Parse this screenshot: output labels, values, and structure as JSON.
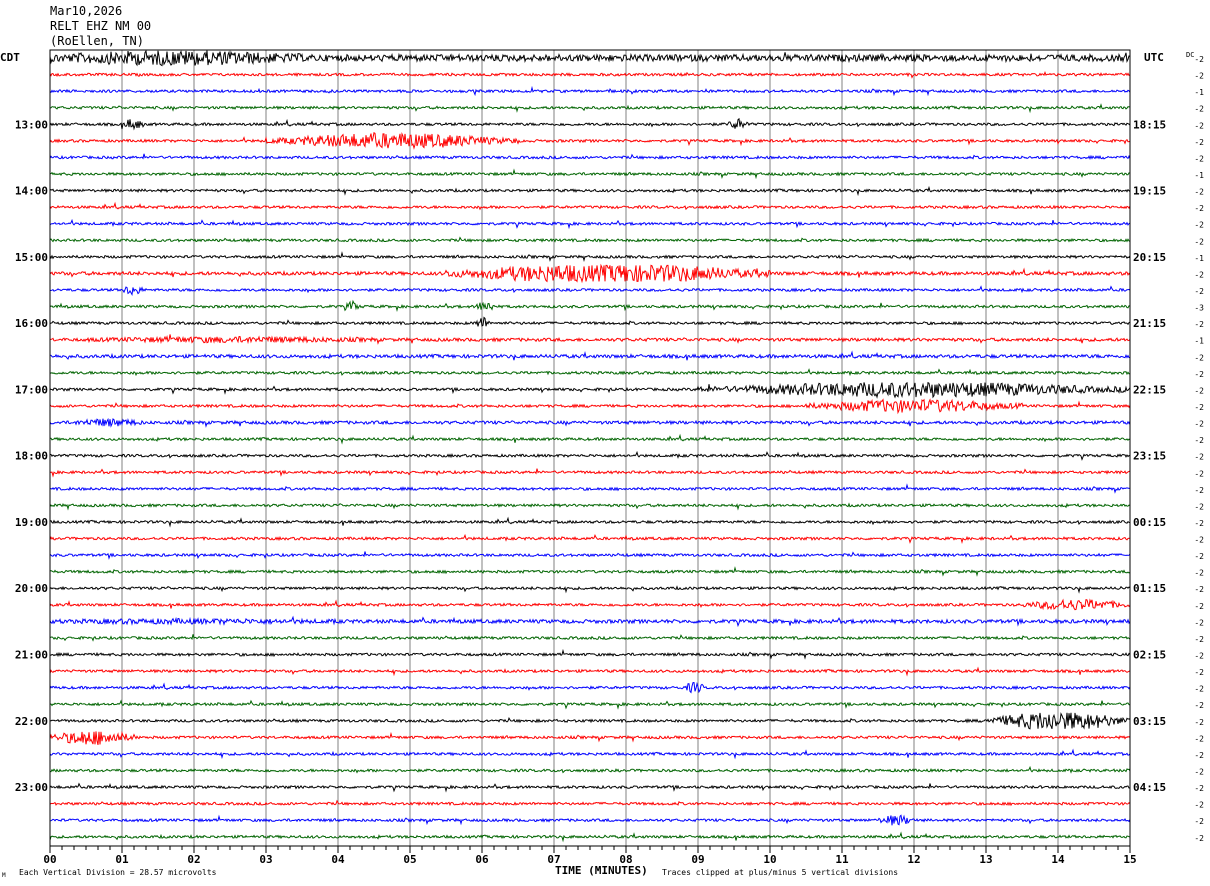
{
  "header": {
    "date": "Mar10,2026",
    "station": "RELT EHZ NM 00",
    "location": "(RoEllen, TN)"
  },
  "labels": {
    "left_tz": "CDT",
    "right_tz": "UTC",
    "dc_label": "DC",
    "xlabel": "TIME (MINUTES)",
    "scale_note": "Each Vertical Division =   28.57 microvolts",
    "clip_note": "Traces clipped at plus/minus 5 vertical divisions",
    "corner_mark": "M"
  },
  "colors": {
    "trace_cycle": [
      "#000000",
      "#ff0000",
      "#0000ff",
      "#006400"
    ],
    "grid": "#808080",
    "frame": "#000000"
  },
  "chart_data": {
    "type": "line",
    "chart_kind": "helicorder",
    "xlim": [
      0,
      15
    ],
    "x_ticks": [
      "00",
      "01",
      "02",
      "03",
      "04",
      "05",
      "06",
      "07",
      "08",
      "09",
      "10",
      "11",
      "12",
      "13",
      "14",
      "15"
    ],
    "minutes_per_line": 15,
    "line_count": 48,
    "left_hour_labels": [
      "13:00",
      "14:00",
      "15:00",
      "16:00",
      "17:00",
      "18:00",
      "19:00",
      "20:00",
      "21:00",
      "22:00",
      "23:00"
    ],
    "right_hour_labels": [
      "18:15",
      "19:15",
      "20:15",
      "21:15",
      "22:15",
      "23:15",
      "00:15",
      "01:15",
      "02:15",
      "03:15",
      "04:15"
    ],
    "dc_offsets": [
      "-2",
      "-2",
      "-1",
      "-2",
      "-2",
      "-2",
      "-2",
      "-1",
      "-2",
      "-2",
      "-2",
      "-2",
      "-1",
      "-2",
      "-2",
      "-3",
      "-2",
      "-1",
      "-2",
      "-2",
      "-2",
      "-2",
      "-2",
      "-2",
      "-2",
      "-2",
      "-2",
      "-2",
      "-2",
      "-2",
      "-2",
      "-2",
      "-2",
      "-2",
      "-2",
      "-2",
      "-2",
      "-2",
      "-2",
      "-2",
      "-2",
      "-2",
      "-2",
      "-2",
      "-2",
      "-2",
      "-2",
      "-2"
    ],
    "trace_activity": [
      {
        "line": 0,
        "level": 2.6,
        "bursts": [
          [
            0,
            3.5,
            2.0
          ]
        ]
      },
      {
        "line": 4,
        "level": 1.0,
        "bursts": [
          [
            1.0,
            0.3,
            2.0
          ],
          [
            9.4,
            0.3,
            2.0
          ]
        ]
      },
      {
        "line": 5,
        "level": 1.0,
        "bursts": [
          [
            3.0,
            3.5,
            3.0
          ]
        ]
      },
      {
        "line": 13,
        "level": 1.3,
        "bursts": [
          [
            5.5,
            4.5,
            4.0
          ]
        ]
      },
      {
        "line": 14,
        "level": 1.0,
        "bursts": [
          [
            1.0,
            0.3,
            2.0
          ]
        ]
      },
      {
        "line": 15,
        "level": 1.0,
        "bursts": [
          [
            4.1,
            0.2,
            2.0
          ],
          [
            5.9,
            0.3,
            2.0
          ]
        ]
      },
      {
        "line": 16,
        "level": 1.0,
        "bursts": [
          [
            5.9,
            0.2,
            2.5
          ]
        ]
      },
      {
        "line": 17,
        "level": 1.2,
        "bursts": [
          [
            0.5,
            4.0,
            0.8
          ]
        ]
      },
      {
        "line": 18,
        "level": 1.3,
        "bursts": []
      },
      {
        "line": 20,
        "level": 1.0,
        "bursts": [
          [
            9.0,
            6.0,
            3.0
          ]
        ]
      },
      {
        "line": 21,
        "level": 1.0,
        "bursts": [
          [
            10.5,
            3.0,
            2.5
          ]
        ]
      },
      {
        "line": 22,
        "level": 1.2,
        "bursts": [
          [
            0.3,
            1.0,
            1.2
          ]
        ]
      },
      {
        "line": 34,
        "level": 1.4,
        "bursts": [
          [
            0,
            4,
            0.5
          ]
        ]
      },
      {
        "line": 33,
        "level": 1.0,
        "bursts": [
          [
            13.5,
            1.5,
            2.0
          ]
        ]
      },
      {
        "line": 40,
        "level": 1.0,
        "bursts": [
          [
            13.0,
            2.0,
            4.0
          ]
        ]
      },
      {
        "line": 41,
        "level": 1.0,
        "bursts": [
          [
            0,
            1.2,
            3.0
          ]
        ]
      },
      {
        "line": 38,
        "level": 1.0,
        "bursts": [
          [
            8.8,
            0.3,
            2.0
          ]
        ]
      },
      {
        "line": 46,
        "level": 1.0,
        "bursts": [
          [
            11.5,
            0.5,
            2.0
          ]
        ]
      }
    ]
  }
}
